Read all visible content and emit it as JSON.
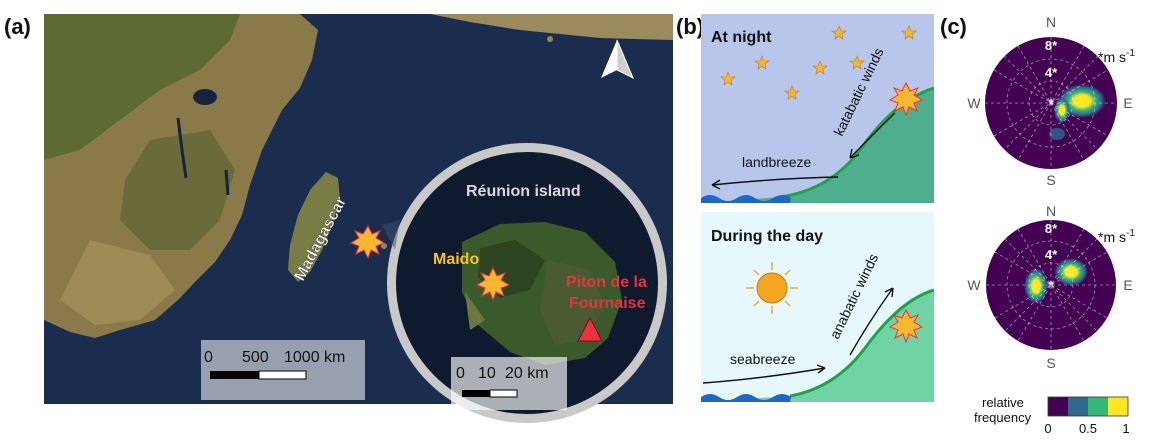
{
  "panels": {
    "a": {
      "label": "(a)",
      "madagascar_label": "Madagascar",
      "island_title": "Réunion island",
      "maido_label": "Maido",
      "piton_label_line1": "Piton de la",
      "piton_label_line2": "Fournaise",
      "scalebar_main": {
        "ticks": [
          "0",
          "500",
          "1000 km"
        ]
      },
      "scalebar_inset": {
        "ticks": [
          "0",
          "10",
          "20 km"
        ]
      },
      "north_arrow_icon": "north-arrow-icon"
    },
    "b": {
      "label": "(b)",
      "night": {
        "title": "At night",
        "slope_wind": "katabatic winds",
        "breeze": "landbreeze"
      },
      "day": {
        "title": "During the day",
        "slope_wind": "anabatic winds",
        "breeze": "seabreeze"
      }
    },
    "c": {
      "label": "(c)",
      "unit_prefix": "*m s",
      "unit_sup": "-1",
      "compass": {
        "n": "N",
        "s": "S",
        "e": "E",
        "w": "W"
      },
      "ring_labels": [
        "4*",
        "8*"
      ],
      "center_marker": "*",
      "colorbar": {
        "title_line1": "relative",
        "title_line2": "frequency",
        "ticks": [
          "0",
          "0.5",
          "1"
        ],
        "colors": [
          "#440154",
          "#31688e",
          "#35b779",
          "#fde725"
        ]
      }
    }
  },
  "colors": {
    "ocean": "#1b2d4f",
    "night_sky": "#b7c6ea",
    "day_sky": "#e6f8fb",
    "slope_night": "#4fae8e",
    "slope_day": "#6fd3a5",
    "star": "#f7b733",
    "sun": "#f5a623",
    "volcano_red": "#e8333f",
    "maido_yellow": "#f6c32b",
    "polar_bg": "#440154"
  }
}
